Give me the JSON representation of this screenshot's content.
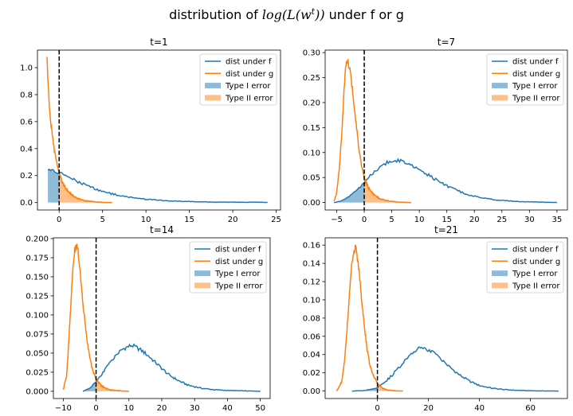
{
  "figure": {
    "suptitle_prefix": "distribution of ",
    "suptitle_math_log": "log",
    "suptitle_math_L": "(L(w",
    "suptitle_math_sup": "t",
    "suptitle_math_close": "))",
    "suptitle_suffix": " under f or g"
  },
  "colors": {
    "f": "#1f77b4",
    "g": "#ff7f0e",
    "f_fill": "#8fbbd9",
    "g_fill": "#ffbf86",
    "vline": "#000000"
  },
  "chart_data": [
    {
      "type": "line",
      "title": "t=1",
      "xlim": [
        -2.5,
        25.5
      ],
      "ylim": [
        -0.055,
        1.13
      ],
      "xticks": [
        0,
        5,
        10,
        15,
        20,
        25
      ],
      "xtick_labels": [
        "0",
        "5",
        "10",
        "15",
        "20",
        "25"
      ],
      "yticks": [
        0.0,
        0.2,
        0.4,
        0.6,
        0.8,
        1.0
      ],
      "ytick_labels": [
        "0.0",
        "0.2",
        "0.4",
        "0.6",
        "0.8",
        "1.0"
      ],
      "vline_x": 0,
      "legend_position": "upper right",
      "legend": [
        "dist under f",
        "dist under g",
        "Type I error",
        "Type II error"
      ],
      "series": [
        {
          "name": "dist under f",
          "color": "f",
          "x": [
            -1.3,
            -0.8,
            -0.3,
            0.3,
            1,
            2,
            3,
            4,
            5,
            6,
            7,
            8,
            9,
            10,
            12,
            14,
            16,
            18,
            20,
            24
          ],
          "y": [
            0.24,
            0.235,
            0.228,
            0.215,
            0.19,
            0.16,
            0.13,
            0.105,
            0.083,
            0.066,
            0.052,
            0.04,
            0.031,
            0.024,
            0.015,
            0.009,
            0.006,
            0.004,
            0.003,
            0.002
          ]
        },
        {
          "name": "dist under g",
          "color": "g",
          "x": [
            -1.4,
            -1.2,
            -1.0,
            -0.8,
            -0.6,
            -0.4,
            -0.2,
            0,
            0.3,
            0.6,
            1,
            1.5,
            2,
            2.5,
            3,
            3.5,
            4,
            5,
            6.1
          ],
          "y": [
            1.08,
            0.78,
            0.62,
            0.5,
            0.41,
            0.33,
            0.27,
            0.22,
            0.16,
            0.12,
            0.085,
            0.055,
            0.035,
            0.022,
            0.015,
            0.01,
            0.006,
            0.002,
            0.0
          ]
        }
      ]
    },
    {
      "type": "line",
      "title": "t=7",
      "xlim": [
        -7.1,
        36.9
      ],
      "ylim": [
        -0.015,
        0.305
      ],
      "xticks": [
        -5,
        0,
        5,
        10,
        15,
        20,
        25,
        30,
        35
      ],
      "xtick_labels": [
        "−5",
        "0",
        "5",
        "10",
        "15",
        "20",
        "25",
        "30",
        "35"
      ],
      "yticks": [
        0.0,
        0.05,
        0.1,
        0.15,
        0.2,
        0.25,
        0.3
      ],
      "ytick_labels": [
        "0.00",
        "0.05",
        "0.10",
        "0.15",
        "0.20",
        "0.25",
        "0.30"
      ],
      "vline_x": 0,
      "legend_position": "upper right",
      "legend": [
        "dist under f",
        "dist under g",
        "Type I error",
        "Type II error"
      ],
      "series": [
        {
          "name": "dist under f",
          "color": "f",
          "x": [
            -5.5,
            -4,
            -3,
            -2,
            -1,
            0,
            1,
            2,
            3,
            4,
            5,
            6,
            7,
            8,
            10,
            12,
            14,
            16,
            18,
            20,
            22,
            25,
            28,
            31,
            35
          ],
          "y": [
            0.0,
            0.004,
            0.01,
            0.018,
            0.028,
            0.04,
            0.052,
            0.063,
            0.072,
            0.079,
            0.083,
            0.084,
            0.082,
            0.078,
            0.066,
            0.052,
            0.039,
            0.028,
            0.019,
            0.012,
            0.008,
            0.004,
            0.002,
            0.001,
            0.0
          ]
        },
        {
          "name": "dist under g",
          "color": "g",
          "x": [
            -5.5,
            -5,
            -4.5,
            -4,
            -3.7,
            -3.4,
            -3,
            -2.5,
            -2,
            -1.5,
            -1,
            -0.5,
            0,
            0.5,
            1,
            2,
            3,
            4,
            5,
            6,
            7,
            8.5
          ],
          "y": [
            0.003,
            0.02,
            0.07,
            0.15,
            0.22,
            0.27,
            0.285,
            0.26,
            0.21,
            0.16,
            0.11,
            0.075,
            0.05,
            0.035,
            0.025,
            0.013,
            0.007,
            0.004,
            0.002,
            0.001,
            0.0005,
            0.0
          ]
        }
      ]
    },
    {
      "type": "line",
      "title": "t=14",
      "xlim": [
        -13.0,
        53.0
      ],
      "ylim": [
        -0.0095,
        0.201
      ],
      "xticks": [
        -10,
        0,
        10,
        20,
        30,
        40,
        50
      ],
      "xtick_labels": [
        "−10",
        "0",
        "10",
        "20",
        "30",
        "40",
        "50"
      ],
      "yticks": [
        0.0,
        0.025,
        0.05,
        0.075,
        0.1,
        0.125,
        0.15,
        0.175,
        0.2
      ],
      "ytick_labels": [
        "0.000",
        "0.025",
        "0.050",
        "0.075",
        "0.100",
        "0.125",
        "0.150",
        "0.175",
        "0.200"
      ],
      "vline_x": 0,
      "legend_position": "upper right",
      "legend": [
        "dist under f",
        "dist under g",
        "Type I error",
        "Type II error"
      ],
      "series": [
        {
          "name": "dist under f",
          "color": "f",
          "x": [
            -4,
            -2,
            0,
            2,
            4,
            6,
            8,
            10,
            11,
            12,
            14,
            16,
            18,
            20,
            22,
            25,
            28,
            32,
            36,
            40,
            45,
            50
          ],
          "y": [
            0.0,
            0.004,
            0.012,
            0.024,
            0.036,
            0.047,
            0.055,
            0.059,
            0.06,
            0.058,
            0.053,
            0.046,
            0.038,
            0.03,
            0.022,
            0.014,
            0.008,
            0.004,
            0.002,
            0.001,
            0.0005,
            0.0
          ]
        },
        {
          "name": "dist under g",
          "color": "g",
          "x": [
            -10,
            -9,
            -8.5,
            -8,
            -7.5,
            -7,
            -6.5,
            -6,
            -5.5,
            -5,
            -4.5,
            -4,
            -3,
            -2,
            -1,
            0,
            1,
            2,
            4,
            6,
            8,
            10
          ],
          "y": [
            0.002,
            0.02,
            0.05,
            0.09,
            0.13,
            0.165,
            0.185,
            0.19,
            0.185,
            0.165,
            0.14,
            0.115,
            0.075,
            0.045,
            0.027,
            0.016,
            0.01,
            0.006,
            0.002,
            0.001,
            0.0003,
            0.0
          ]
        }
      ]
    },
    {
      "type": "line",
      "title": "t=21",
      "xlim": [
        -20.5,
        74.5
      ],
      "ylim": [
        -0.0082,
        0.168
      ],
      "xticks": [
        0,
        20,
        40,
        60
      ],
      "xtick_labels": [
        "0",
        "20",
        "40",
        "60"
      ],
      "yticks": [
        0.0,
        0.02,
        0.04,
        0.06,
        0.08,
        0.1,
        0.12,
        0.14,
        0.16
      ],
      "ytick_labels": [
        "0.00",
        "0.02",
        "0.04",
        "0.06",
        "0.08",
        "0.10",
        "0.12",
        "0.14",
        "0.16"
      ],
      "vline_x": 0,
      "legend_position": "upper right",
      "legend": [
        "dist under f",
        "dist under g",
        "Type I error",
        "Type II error"
      ],
      "series": [
        {
          "name": "dist under f",
          "color": "f",
          "x": [
            -10,
            -5,
            -2,
            0,
            3,
            6,
            9,
            12,
            15,
            17,
            19,
            22,
            25,
            28,
            32,
            36,
            40,
            45,
            50,
            55,
            60,
            65,
            71
          ],
          "y": [
            0.0,
            0.0005,
            0.002,
            0.004,
            0.01,
            0.018,
            0.028,
            0.038,
            0.045,
            0.047,
            0.046,
            0.042,
            0.035,
            0.027,
            0.018,
            0.011,
            0.006,
            0.003,
            0.0015,
            0.0007,
            0.0003,
            0.0001,
            0.0
          ]
        },
        {
          "name": "dist under g",
          "color": "g",
          "x": [
            -16,
            -14,
            -13,
            -12,
            -11,
            -10,
            -9,
            -8.5,
            -8,
            -7,
            -6,
            -5,
            -4,
            -3,
            -2,
            0,
            2,
            4,
            7,
            10
          ],
          "y": [
            0.0,
            0.01,
            0.03,
            0.065,
            0.105,
            0.14,
            0.155,
            0.158,
            0.15,
            0.125,
            0.095,
            0.068,
            0.045,
            0.03,
            0.02,
            0.008,
            0.003,
            0.001,
            0.0002,
            0.0
          ]
        }
      ]
    }
  ]
}
